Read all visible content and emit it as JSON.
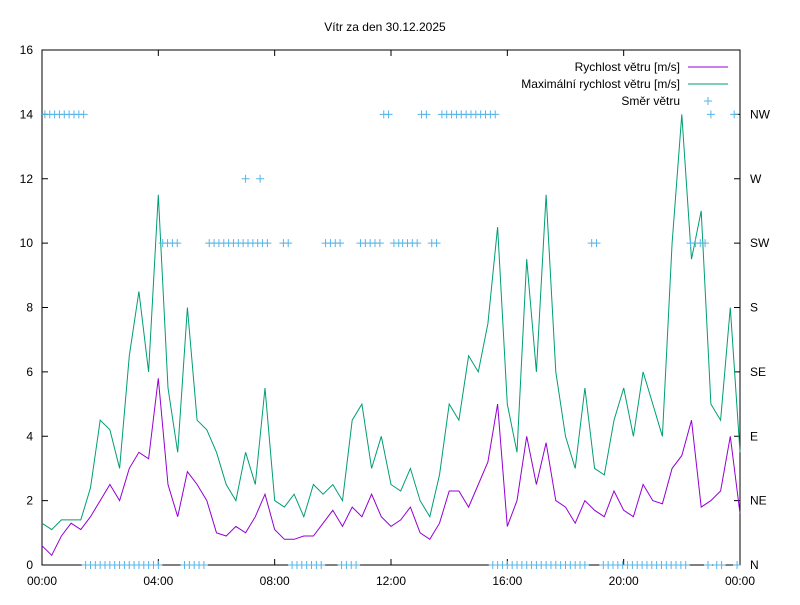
{
  "chart_data": {
    "type": "line",
    "title": "Vítr za den 30.12.2025",
    "xlabel": "",
    "ylabel": "",
    "xlim_hours": [
      0,
      24
    ],
    "ylim": [
      0,
      16
    ],
    "x_ticks": [
      "00:00",
      "04:00",
      "08:00",
      "12:00",
      "16:00",
      "20:00",
      "00:00"
    ],
    "y_ticks": [
      "0",
      "2",
      "4",
      "6",
      "8",
      "10",
      "12",
      "14",
      "16"
    ],
    "y2_ticks": [
      "N",
      "NE",
      "E",
      "SE",
      "S",
      "SW",
      "W",
      "NW"
    ],
    "grid": false,
    "legend_position": "top-right",
    "colors": {
      "avg": "#9400d3",
      "max": "#009e73",
      "dir": "#56b4e9"
    },
    "series": [
      {
        "name": "Rychlost větru [m/s]",
        "x_step_minutes": 20,
        "values": [
          0.6,
          0.3,
          0.9,
          1.3,
          1.1,
          1.5,
          2.0,
          2.5,
          2.0,
          3.0,
          3.5,
          3.3,
          5.8,
          2.5,
          1.5,
          2.9,
          2.5,
          2.0,
          1.0,
          0.9,
          1.2,
          1.0,
          1.5,
          2.2,
          1.1,
          0.8,
          0.8,
          0.9,
          0.9,
          1.3,
          1.7,
          1.2,
          1.8,
          1.5,
          2.2,
          1.5,
          1.2,
          1.4,
          1.8,
          1.0,
          0.8,
          1.3,
          2.3,
          2.3,
          1.8,
          2.5,
          3.2,
          5.0,
          1.2,
          2.0,
          4.0,
          2.5,
          3.8,
          2.0,
          1.8,
          1.3,
          2.0,
          1.7,
          1.5,
          2.3,
          1.7,
          1.5,
          2.5,
          2.0,
          1.9,
          3.0,
          3.4,
          4.5,
          1.8,
          2.0,
          2.3,
          4.0,
          1.6
        ]
      },
      {
        "name": "Maximální rychlost větru [m/s]",
        "x_step_minutes": 20,
        "values": [
          1.3,
          1.1,
          1.4,
          1.4,
          1.4,
          2.4,
          4.5,
          4.2,
          3.0,
          6.5,
          8.5,
          6.0,
          11.5,
          5.5,
          3.5,
          8.0,
          4.5,
          4.2,
          3.5,
          2.5,
          2.0,
          3.5,
          2.5,
          5.5,
          2.0,
          1.8,
          2.2,
          1.5,
          2.5,
          2.2,
          2.5,
          2.0,
          4.5,
          5.0,
          3.0,
          4.0,
          2.5,
          2.3,
          3.0,
          2.0,
          1.5,
          2.8,
          5.0,
          4.5,
          6.5,
          6.0,
          7.5,
          10.5,
          5.0,
          3.5,
          9.5,
          6.0,
          11.5,
          6.0,
          4.0,
          3.0,
          5.5,
          3.0,
          2.8,
          4.5,
          5.5,
          4.0,
          6.0,
          5.0,
          4.0,
          10.0,
          14.0,
          9.5,
          11.0,
          5.0,
          4.5,
          8.0,
          3.5
        ]
      },
      {
        "name": "Směr větru",
        "axis": "y2",
        "x_step_minutes": 10,
        "runs": [
          [
            0.1,
            1.5,
            "NW"
          ],
          [
            1.5,
            4.1,
            "N"
          ],
          [
            4.15,
            4.8,
            "SW"
          ],
          [
            4.9,
            5.7,
            "N"
          ],
          [
            5.75,
            7.8,
            "SW"
          ],
          [
            7.0,
            7.0,
            "W"
          ],
          [
            7.5,
            7.5,
            "W"
          ],
          [
            8.3,
            8.5,
            "SW"
          ],
          [
            8.6,
            9.6,
            "N"
          ],
          [
            9.75,
            10.25,
            "SW"
          ],
          [
            10.3,
            10.9,
            "N"
          ],
          [
            10.95,
            11.7,
            "SW"
          ],
          [
            11.75,
            12.0,
            "NW"
          ],
          [
            12.1,
            12.4,
            "SW"
          ],
          [
            12.4,
            13.0,
            "SW"
          ],
          [
            13.05,
            13.35,
            "NW"
          ],
          [
            13.4,
            13.7,
            "SW"
          ],
          [
            13.75,
            15.6,
            "NW"
          ],
          [
            15.5,
            18.8,
            "N"
          ],
          [
            18.9,
            19.2,
            "SW"
          ],
          [
            19.3,
            22.2,
            "N"
          ],
          [
            22.3,
            22.8,
            "SW"
          ],
          [
            22.9,
            23.0,
            "N"
          ],
          [
            23.0,
            23.0,
            "NW"
          ],
          [
            23.2,
            23.5,
            "N"
          ],
          [
            23.8,
            23.8,
            "NW"
          ],
          [
            23.9,
            24.0,
            "N"
          ]
        ]
      }
    ]
  }
}
